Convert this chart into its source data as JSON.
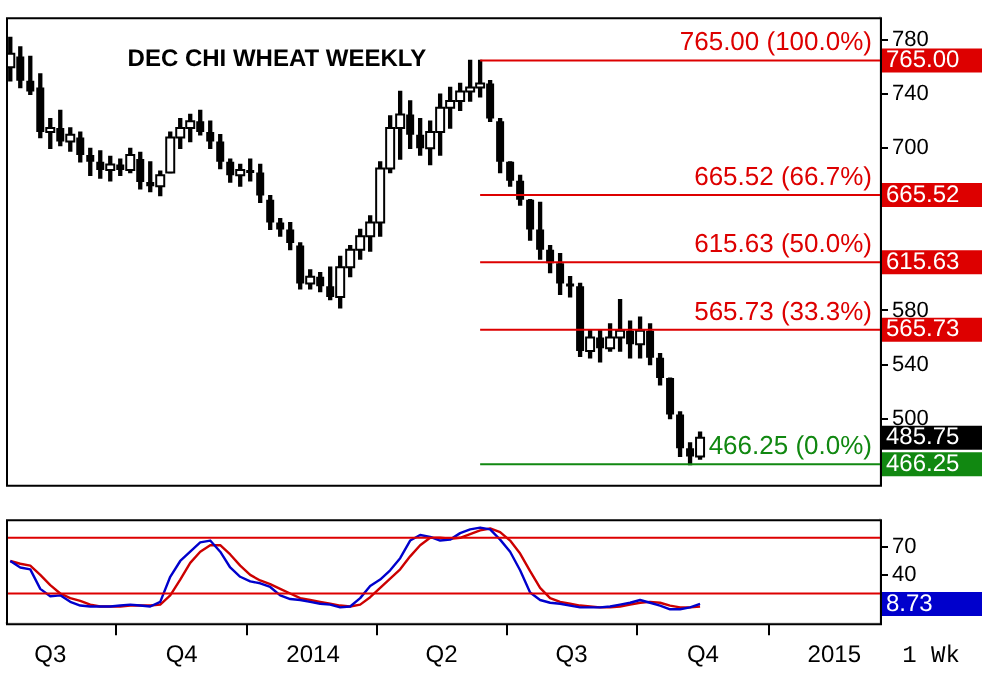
{
  "chart_data": [
    {
      "type": "candlestick",
      "title": "DEC CHI WHEAT WEEKLY",
      "x": [
        "2013-06-03",
        "2013-06-10",
        "2013-06-17",
        "2013-06-24",
        "2013-07-01",
        "2013-07-08",
        "2013-07-15",
        "2013-07-22",
        "2013-07-29",
        "2013-08-05",
        "2013-08-12",
        "2013-08-19",
        "2013-08-26",
        "2013-09-02",
        "2013-09-09",
        "2013-09-16",
        "2013-09-23",
        "2013-09-30",
        "2013-10-07",
        "2013-10-14",
        "2013-10-21",
        "2013-10-28",
        "2013-11-04",
        "2013-11-11",
        "2013-11-18",
        "2013-11-25",
        "2013-12-02",
        "2013-12-09",
        "2013-12-16",
        "2013-12-23",
        "2013-12-30",
        "2014-01-06",
        "2014-01-13",
        "2014-01-20",
        "2014-01-27",
        "2014-02-03",
        "2014-02-10",
        "2014-02-17",
        "2014-02-24",
        "2014-03-03",
        "2014-03-10",
        "2014-03-17",
        "2014-03-24",
        "2014-03-31",
        "2014-04-07",
        "2014-04-14",
        "2014-04-21",
        "2014-04-28",
        "2014-05-05",
        "2014-05-12",
        "2014-05-19",
        "2014-05-26",
        "2014-06-02",
        "2014-06-09",
        "2014-06-16",
        "2014-06-23",
        "2014-06-30",
        "2014-07-07",
        "2014-07-14",
        "2014-07-21",
        "2014-07-28",
        "2014-08-04",
        "2014-08-11",
        "2014-08-18",
        "2014-08-25",
        "2014-09-01",
        "2014-09-08",
        "2014-09-15",
        "2014-09-22",
        "2014-09-29"
      ],
      "ohlc": [
        [
          760,
          782,
          750,
          770
        ],
        [
          768,
          775,
          745,
          750
        ],
        [
          750,
          768,
          740,
          742
        ],
        [
          745,
          755,
          708,
          712
        ],
        [
          712,
          722,
          700,
          715
        ],
        [
          715,
          728,
          702,
          705
        ],
        [
          705,
          715,
          698,
          710
        ],
        [
          708,
          712,
          690,
          695
        ],
        [
          695,
          700,
          680,
          690
        ],
        [
          690,
          698,
          678,
          684
        ],
        [
          684,
          694,
          676,
          688
        ],
        [
          688,
          692,
          680,
          684
        ],
        [
          684,
          700,
          682,
          695
        ],
        [
          692,
          697,
          670,
          675
        ],
        [
          675,
          690,
          668,
          672
        ],
        [
          672,
          683,
          665,
          680
        ],
        [
          682,
          712,
          682,
          708
        ],
        [
          708,
          722,
          700,
          715
        ],
        [
          715,
          725,
          705,
          720
        ],
        [
          720,
          728,
          710,
          712
        ],
        [
          712,
          720,
          700,
          705
        ],
        [
          705,
          710,
          685,
          690
        ],
        [
          690,
          692,
          675,
          680
        ],
        [
          680,
          688,
          672,
          684
        ],
        [
          684,
          692,
          676,
          682
        ],
        [
          682,
          688,
          660,
          665
        ],
        [
          662,
          665,
          640,
          645
        ],
        [
          645,
          648,
          635,
          640
        ],
        [
          640,
          645,
          625,
          630
        ],
        [
          628,
          630,
          596,
          600
        ],
        [
          600,
          610,
          596,
          605
        ],
        [
          605,
          608,
          594,
          598
        ],
        [
          598,
          612,
          588,
          590
        ],
        [
          590,
          620,
          582,
          612
        ],
        [
          612,
          628,
          605,
          625
        ],
        [
          625,
          640,
          618,
          635
        ],
        [
          635,
          650,
          624,
          645
        ],
        [
          645,
          690,
          635,
          685
        ],
        [
          685,
          724,
          682,
          715
        ],
        [
          715,
          742,
          692,
          725
        ],
        [
          725,
          735,
          700,
          710
        ],
        [
          710,
          722,
          695,
          700
        ],
        [
          700,
          720,
          688,
          712
        ],
        [
          712,
          740,
          695,
          730
        ],
        [
          730,
          745,
          715,
          735
        ],
        [
          735,
          748,
          728,
          742
        ],
        [
          742,
          765,
          735,
          745
        ],
        [
          745,
          765,
          738,
          748
        ],
        [
          748,
          750,
          720,
          722
        ],
        [
          720,
          722,
          682,
          690
        ],
        [
          690,
          690,
          672,
          676
        ],
        [
          676,
          680,
          658,
          662
        ],
        [
          662,
          662,
          632,
          640
        ],
        [
          640,
          660,
          618,
          625
        ],
        [
          625,
          628,
          608,
          615
        ],
        [
          615,
          622,
          592,
          600
        ],
        [
          600,
          605,
          590,
          598
        ],
        [
          598,
          600,
          546,
          550
        ],
        [
          550,
          565,
          545,
          560
        ],
        [
          560,
          565,
          542,
          552
        ],
        [
          552,
          570,
          550,
          560
        ],
        [
          560,
          588,
          550,
          565
        ],
        [
          565,
          572,
          545,
          555
        ],
        [
          555,
          575,
          545,
          565
        ],
        [
          565,
          570,
          540,
          545
        ],
        [
          545,
          548,
          525,
          530
        ],
        [
          530,
          530,
          500,
          503
        ],
        [
          503,
          505,
          472,
          478
        ],
        [
          478,
          482,
          466,
          472
        ],
        [
          472,
          490,
          470,
          485.75
        ]
      ],
      "xlim": [
        "2013-05-31",
        "2015-02-02"
      ],
      "ylim": [
        451,
        797
      ],
      "yticks": [
        500,
        540,
        580,
        700,
        740,
        780
      ],
      "tick_labels": "y",
      "ref_lines": [
        {
          "axis": "y",
          "value": 765,
          "label": "765.00 (100.0%)",
          "color": "#dd0000"
        },
        {
          "axis": "y",
          "value": 665.52,
          "label": "665.52 (66.7%)",
          "color": "#dd0000"
        },
        {
          "axis": "y",
          "value": 615.63,
          "label": "615.63 (50.0%)",
          "color": "#dd0000"
        },
        {
          "axis": "y",
          "value": 565.73,
          "label": "565.73 (33.3%)",
          "color": "#dd0000"
        },
        {
          "axis": "y",
          "value": 466.25,
          "label": "466.25 (0.0%)",
          "color": "#118811"
        }
      ],
      "annotations": [
        "485.75",
        "765.00",
        "665.52",
        "615.63",
        "565.73",
        "466.25"
      ]
    },
    {
      "type": "line",
      "x": [
        "2013-06-03",
        "2013-06-10",
        "2013-06-17",
        "2013-06-24",
        "2013-07-01",
        "2013-07-08",
        "2013-07-15",
        "2013-07-22",
        "2013-07-29",
        "2013-08-05",
        "2013-08-12",
        "2013-08-19",
        "2013-08-26",
        "2013-09-02",
        "2013-09-09",
        "2013-09-16",
        "2013-09-23",
        "2013-09-30",
        "2013-10-07",
        "2013-10-14",
        "2013-10-21",
        "2013-10-28",
        "2013-11-04",
        "2013-11-11",
        "2013-11-18",
        "2013-11-25",
        "2013-12-02",
        "2013-12-09",
        "2013-12-16",
        "2013-12-23",
        "2013-12-30",
        "2014-01-06",
        "2014-01-13",
        "2014-01-20",
        "2014-01-27",
        "2014-02-03",
        "2014-02-10",
        "2014-02-17",
        "2014-02-24",
        "2014-03-03",
        "2014-03-10",
        "2014-03-17",
        "2014-03-24",
        "2014-03-31",
        "2014-04-07",
        "2014-04-14",
        "2014-04-21",
        "2014-04-28",
        "2014-05-05",
        "2014-05-12",
        "2014-05-19",
        "2014-05-26",
        "2014-06-02",
        "2014-06-09",
        "2014-06-16",
        "2014-06-23",
        "2014-06-30",
        "2014-07-07",
        "2014-07-14",
        "2014-07-21",
        "2014-07-28",
        "2014-08-04",
        "2014-08-11",
        "2014-08-18",
        "2014-08-25",
        "2014-09-01",
        "2014-09-08",
        "2014-09-15",
        "2014-09-22",
        "2014-09-29"
      ],
      "series": [
        {
          "color": "#0000cc",
          "values": [
            55,
            48,
            46,
            25,
            17,
            18,
            11,
            7,
            6,
            6,
            6,
            7,
            8,
            7,
            6,
            11,
            38,
            55,
            65,
            75,
            77,
            65,
            48,
            38,
            33,
            31,
            27,
            18,
            14,
            13,
            11,
            9,
            8,
            5,
            6,
            15,
            28,
            35,
            45,
            58,
            77,
            83,
            81,
            77,
            78,
            85,
            89,
            91,
            89,
            78,
            65,
            45,
            21,
            13,
            10,
            9,
            7,
            5,
            5,
            5,
            6,
            8,
            10,
            13,
            10,
            7,
            3,
            3,
            5,
            8.73
          ]
        },
        {
          "color": "#cc0000",
          "values": [
            55,
            52,
            50,
            40,
            29,
            20,
            15,
            12,
            8,
            6,
            6,
            6,
            7,
            7,
            7,
            8,
            18,
            35,
            53,
            65,
            72,
            72,
            62,
            50,
            40,
            34,
            30,
            25,
            20,
            15,
            13,
            11,
            9,
            7,
            6,
            8,
            16,
            26,
            36,
            46,
            60,
            72,
            80,
            80,
            79,
            80,
            84,
            88,
            90,
            86,
            77,
            63,
            44,
            26,
            15,
            11,
            9,
            7,
            6,
            5,
            5,
            6,
            8,
            10,
            11,
            10,
            7,
            5,
            5,
            6
          ]
        }
      ],
      "xlim": [
        "2013-05-31",
        "2015-02-02"
      ],
      "ylim": [
        -12,
        100
      ],
      "yticks": [
        40,
        70
      ],
      "xticks": [
        {
          "value": "2013-07-01",
          "label": "Q3"
        },
        {
          "value": "2013-10-01",
          "label": "Q4"
        },
        {
          "value": "2014-01-01",
          "label": "2014"
        },
        {
          "value": "2014-04-01",
          "label": "Q2"
        },
        {
          "value": "2014-07-01",
          "label": "Q3"
        },
        {
          "value": "2014-10-01",
          "label": "Q4"
        },
        {
          "value": "2015-01-01",
          "label": "2015"
        }
      ],
      "marker": "none",
      "ref_lines": [
        {
          "axis": "y",
          "value": 80,
          "color": "#dd0000"
        },
        {
          "axis": "y",
          "value": 20,
          "color": "#dd0000"
        }
      ],
      "annotations": [
        "8.73",
        "1 Wk"
      ]
    }
  ]
}
